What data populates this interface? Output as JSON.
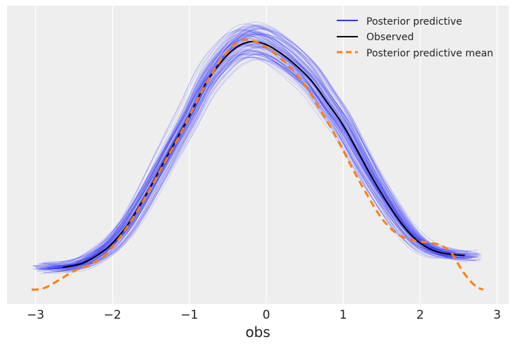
{
  "chart_data": {
    "type": "line",
    "title": "",
    "xlabel": "obs",
    "ylabel": "",
    "xlim": [
      -3.37,
      3.15
    ],
    "ylim": [
      -0.023,
      0.458
    ],
    "x_ticks": [
      -3,
      -2,
      -1,
      0,
      1,
      2,
      3
    ],
    "x_tick_labels": [
      "−3",
      "−2",
      "−1",
      "0",
      "1",
      "2",
      "3"
    ],
    "y_axis_visible": false,
    "grid": "vertical",
    "background": "#eeeeee",
    "legend": {
      "placement": "top-right",
      "entries": [
        {
          "label": "Posterior predictive",
          "color": "#3333ff",
          "style": "solid"
        },
        {
          "label": "Observed",
          "color": "#000000",
          "style": "solid"
        },
        {
          "label": "Posterior predictive mean",
          "color": "#ff7f0e",
          "style": "dashed"
        }
      ]
    },
    "series": [
      {
        "name": "Observed",
        "color": "#000000",
        "x": [
          -2.65,
          -2.4,
          -2.2,
          -2.0,
          -1.8,
          -1.6,
          -1.4,
          -1.2,
          -1.0,
          -0.8,
          -0.6,
          -0.4,
          -0.2,
          0.0,
          0.2,
          0.4,
          0.6,
          0.8,
          1.0,
          1.2,
          1.4,
          1.6,
          1.8,
          2.0,
          2.2,
          2.4,
          2.58
        ],
        "y": [
          0.036,
          0.042,
          0.055,
          0.075,
          0.105,
          0.145,
          0.19,
          0.235,
          0.28,
          0.33,
          0.365,
          0.39,
          0.4,
          0.395,
          0.38,
          0.36,
          0.335,
          0.3,
          0.265,
          0.22,
          0.175,
          0.135,
          0.1,
          0.075,
          0.062,
          0.057,
          0.055
        ]
      },
      {
        "name": "Posterior predictive mean",
        "color": "#ff7f0e",
        "x": [
          -3.05,
          -2.9,
          -2.7,
          -2.5,
          -2.3,
          -2.1,
          -1.9,
          -1.7,
          -1.5,
          -1.3,
          -1.1,
          -0.9,
          -0.7,
          -0.5,
          -0.3,
          -0.1,
          0.1,
          0.3,
          0.5,
          0.7,
          0.9,
          1.1,
          1.3,
          1.5,
          1.7,
          1.9,
          2.1,
          2.25,
          2.4,
          2.55,
          2.7,
          2.82
        ],
        "y": [
          0.0,
          0.002,
          0.015,
          0.03,
          0.04,
          0.055,
          0.085,
          0.122,
          0.165,
          0.21,
          0.255,
          0.305,
          0.35,
          0.385,
          0.403,
          0.398,
          0.382,
          0.36,
          0.33,
          0.29,
          0.248,
          0.2,
          0.155,
          0.115,
          0.09,
          0.08,
          0.076,
          0.072,
          0.06,
          0.03,
          0.008,
          0.0
        ]
      }
    ]
  }
}
